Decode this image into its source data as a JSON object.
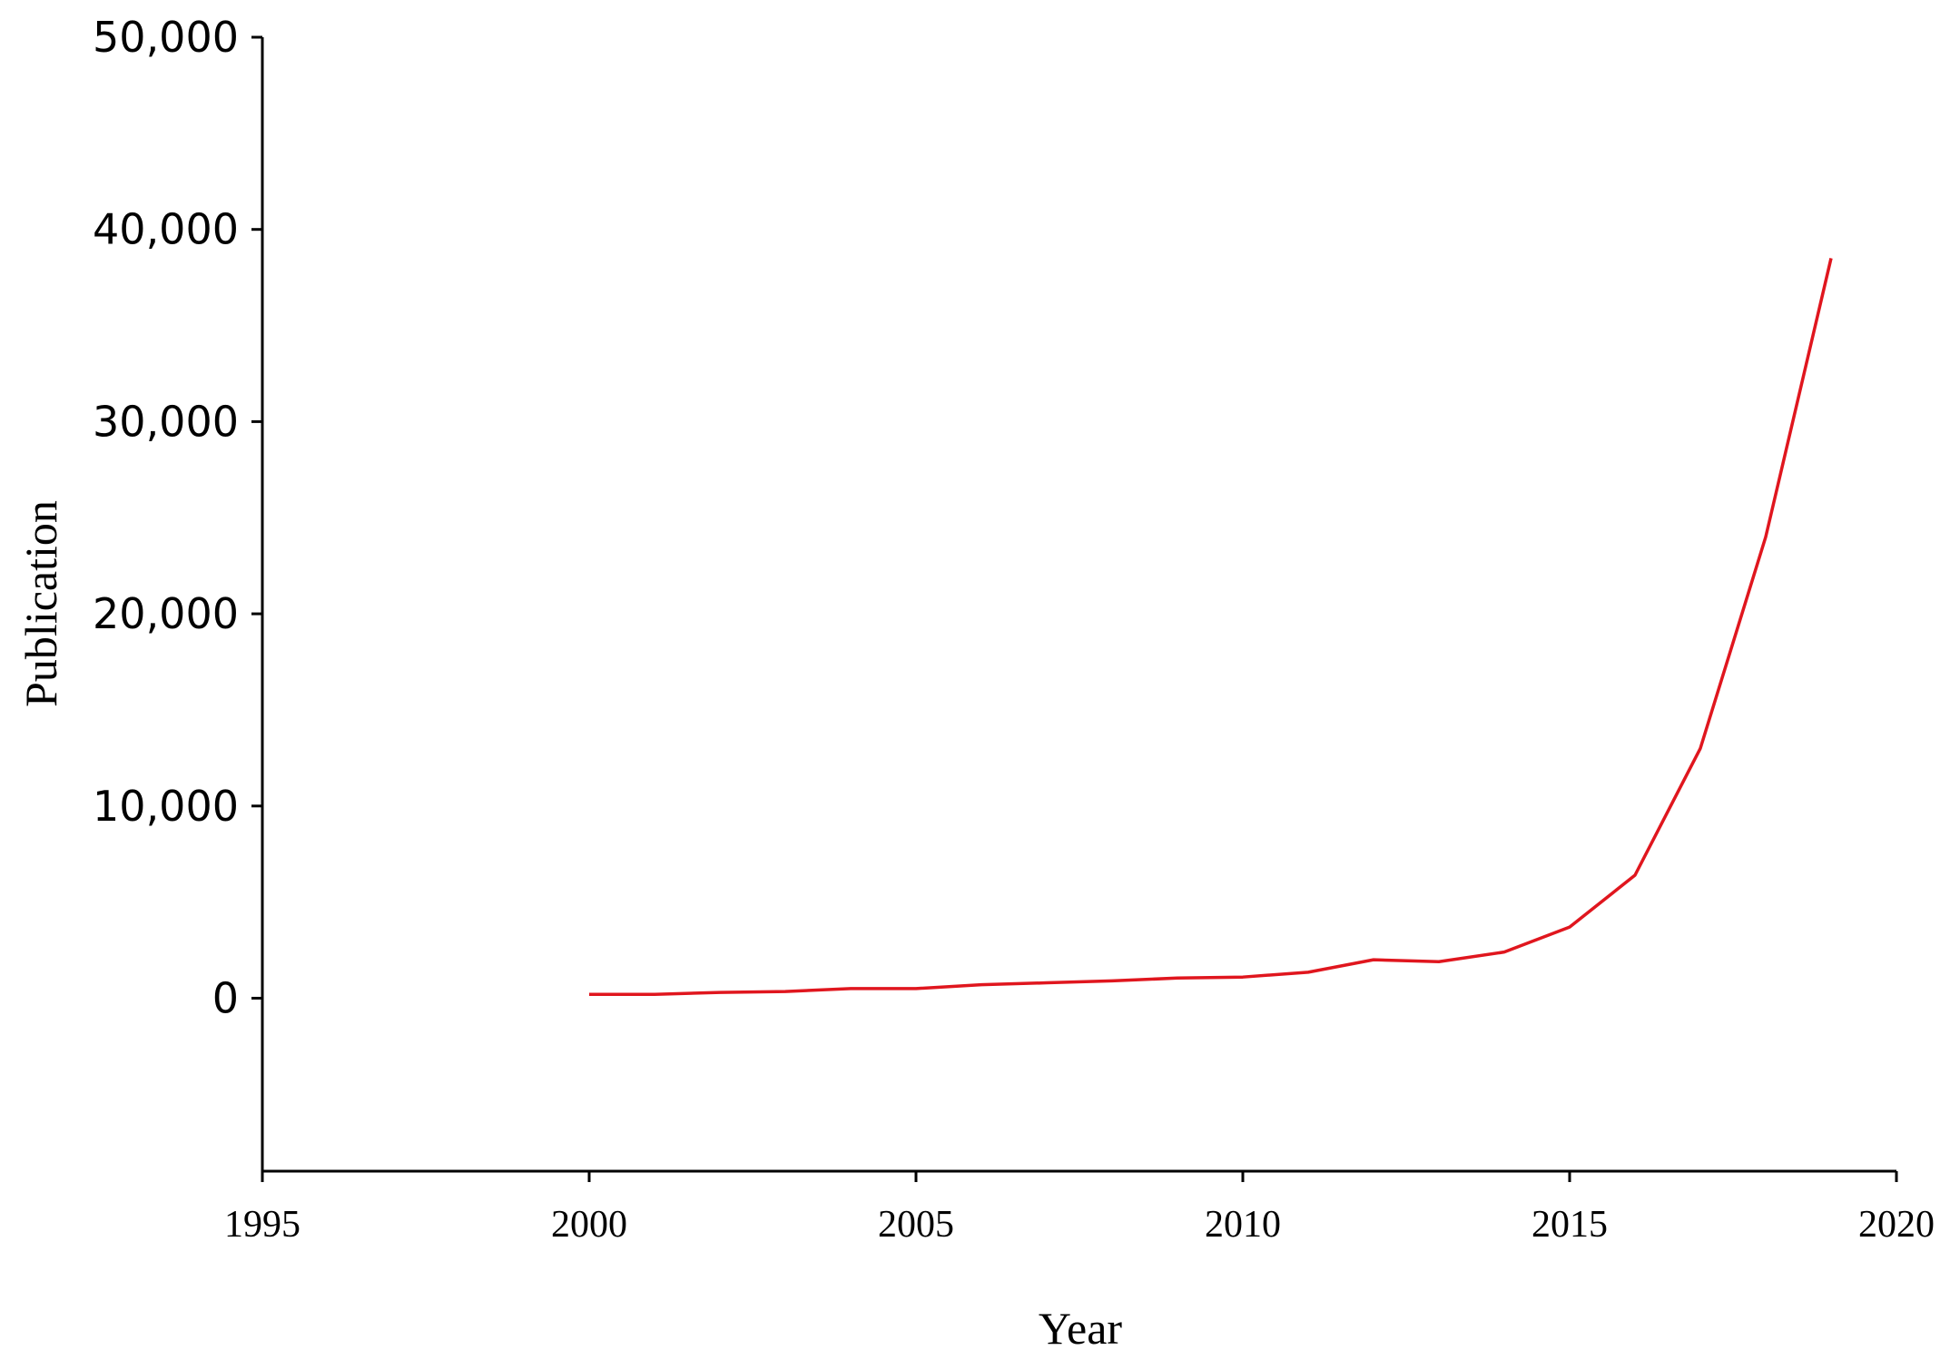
{
  "chart_data": {
    "type": "line",
    "x_label": "Year",
    "y_label": "Publication",
    "x": [
      2000,
      2001,
      2002,
      2003,
      2004,
      2005,
      2006,
      2007,
      2008,
      2009,
      2010,
      2011,
      2012,
      2013,
      2014,
      2015,
      2016,
      2017,
      2018,
      2019
    ],
    "values": [
      200,
      200,
      300,
      350,
      500,
      500,
      700,
      800,
      900,
      1050,
      1100,
      1350,
      2000,
      1900,
      2400,
      3700,
      6400,
      13000,
      24000,
      38500
    ],
    "color": "#e0161e",
    "xlim": [
      1995,
      2020
    ],
    "xticks": [
      1995,
      2000,
      2005,
      2010,
      2015,
      2020
    ],
    "ylim": [
      -9000,
      50000
    ],
    "yticks": [
      0,
      {
        "value": 10000,
        "label": "10,000"
      },
      {
        "value": 20000,
        "label": "20,000"
      },
      {
        "value": 30000,
        "label": "30,000"
      },
      {
        "value": 40000,
        "label": "40,000"
      },
      {
        "value": 50000,
        "label": "50,000"
      }
    ],
    "grid": false
  }
}
